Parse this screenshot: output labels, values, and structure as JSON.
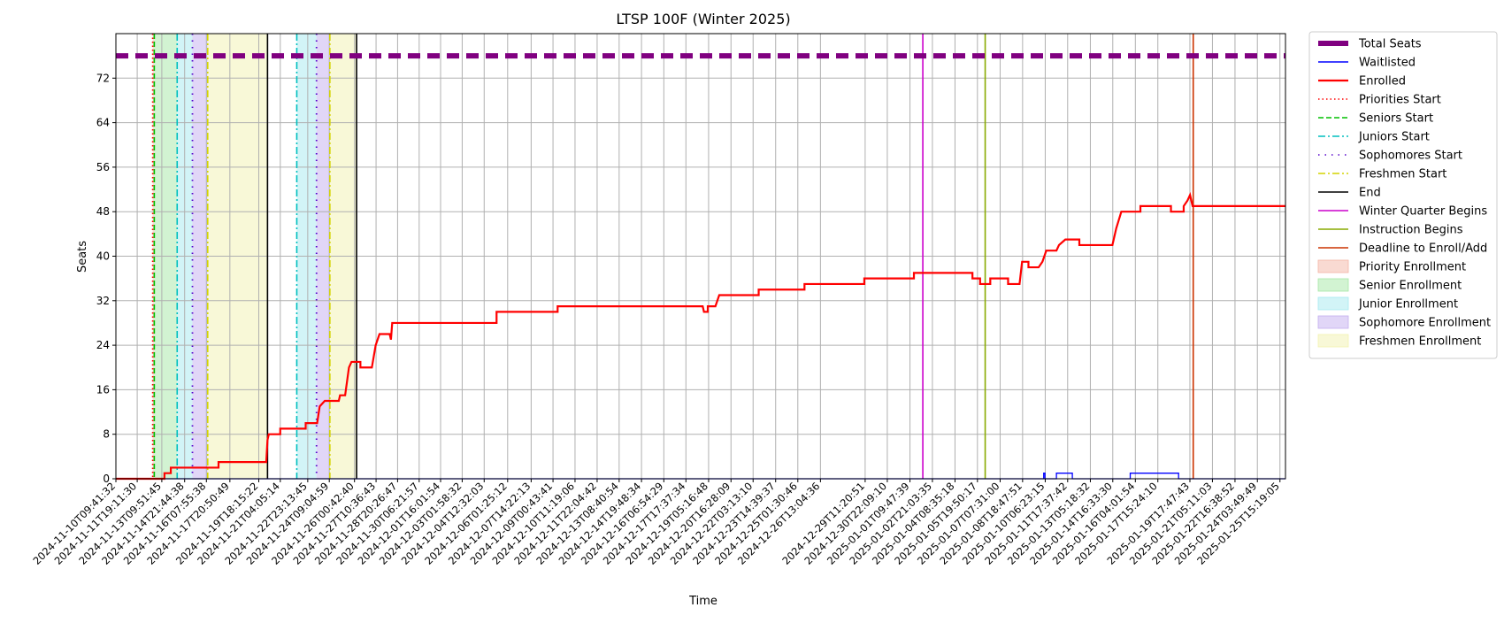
{
  "chart_data": {
    "type": "line",
    "title": "LTSP 100F (Winter 2025)",
    "xlabel": "Time",
    "ylabel": "Seats",
    "ylim": [
      0,
      80
    ],
    "xlim": [
      "2024-11-10T09:41:32",
      "2025-01-26T00:00:00"
    ],
    "yticks": [
      0,
      8,
      16,
      24,
      32,
      40,
      48,
      56,
      64,
      72
    ],
    "xtick_labels": [
      "2024-11-10T09:41:32",
      "2024-11-11T19:11:30",
      "2024-11-13T09:51:45",
      "2024-11-14T21:44:38",
      "2024-11-16T07:55:38",
      "2024-11-17T20:50:49",
      "2024-11-19T18:15:22",
      "2024-11-21T04:05:14",
      "2024-11-22T23:13:45",
      "2024-11-24T09:04:59",
      "2024-11-26T00:42:40",
      "2024-11-27T10:36:43",
      "2024-11-28T20:26:47",
      "2024-11-30T06:21:57",
      "2024-12-01T16:01:54",
      "2024-12-03T01:58:32",
      "2024-12-04T12:32:03",
      "2024-12-06T01:25:12",
      "2024-12-07T14:22:13",
      "2024-12-09T00:43:41",
      "2024-12-10T11:19:06",
      "2024-12-11T22:04:42",
      "2024-12-13T08:40:54",
      "2024-12-14T19:48:34",
      "2024-12-16T06:54:29",
      "2024-12-17T17:37:34",
      "2024-12-19T05:16:48",
      "2024-12-20T16:28:09",
      "2024-12-22T03:13:10",
      "2024-12-23T14:39:37",
      "2024-12-25T01:30:46",
      "2024-12-26T13:04:36",
      "2024-12-29T11:20:51",
      "2024-12-30T22:09:10",
      "2025-01-01T09:47:39",
      "2025-01-02T21:03:35",
      "2025-01-04T08:35:18",
      "2025-01-05T19:50:17",
      "2025-01-07T07:31:00",
      "2025-01-08T18:47:51",
      "2025-01-10T06:23:15",
      "2025-01-11T17:37:42",
      "2025-01-13T05:18:32",
      "2025-01-14T16:33:30",
      "2025-01-16T04:01:54",
      "2025-01-17T15:24:10",
      "2025-01-19T17:47:43",
      "2025-01-21T05:11:03",
      "2025-01-22T16:38:52",
      "2025-01-24T03:49:49",
      "2025-01-25T15:19:05"
    ],
    "grid": true,
    "legend_position": "outside-right",
    "series": [
      {
        "name": "Total Seats",
        "color": "#800080",
        "style": "dashed-thick",
        "points": [
          [
            "2024-11-10T09:41:32",
            76
          ],
          [
            "2025-01-26T00:00:00",
            76
          ]
        ]
      },
      {
        "name": "Waitlisted",
        "color": "#0000ff",
        "style": "solid-thin",
        "points": [
          [
            "2024-11-10T09:41:32",
            0
          ],
          [
            "2025-01-10T04:00:00",
            0
          ],
          [
            "2025-01-10T04:00:00",
            1
          ],
          [
            "2025-01-10T06:00:00",
            1
          ],
          [
            "2025-01-10T06:00:00",
            0
          ],
          [
            "2025-01-11T00:00:00",
            0
          ],
          [
            "2025-01-11T00:00:00",
            1
          ],
          [
            "2025-01-12T01:00:00",
            1
          ],
          [
            "2025-01-12T01:00:00",
            0
          ],
          [
            "2025-01-15T20:00:00",
            0
          ],
          [
            "2025-01-15T20:00:00",
            1
          ],
          [
            "2025-01-19T00:00:00",
            1
          ],
          [
            "2025-01-19T00:00:00",
            0
          ],
          [
            "2025-01-26T00:00:00",
            0
          ]
        ]
      },
      {
        "name": "Enrolled",
        "color": "#ff0000",
        "style": "solid",
        "points": [
          [
            "2024-11-10T09:41:32",
            0
          ],
          [
            "2024-11-13T14:00:00",
            0
          ],
          [
            "2024-11-13T14:00:00",
            1
          ],
          [
            "2024-11-14T00:00:00",
            1
          ],
          [
            "2024-11-14T00:00:00",
            2
          ],
          [
            "2024-11-17T03:00:00",
            2
          ],
          [
            "2024-11-17T03:00:00",
            3
          ],
          [
            "2024-11-20T06:00:00",
            3
          ],
          [
            "2024-11-20T08:00:00",
            7
          ],
          [
            "2024-11-20T10:00:00",
            8
          ],
          [
            "2024-11-21T04:00:00",
            8
          ],
          [
            "2024-11-21T04:00:00",
            9
          ],
          [
            "2024-11-22T20:00:00",
            9
          ],
          [
            "2024-11-22T20:00:00",
            10
          ],
          [
            "2024-11-23T14:00:00",
            10
          ],
          [
            "2024-11-23T18:00:00",
            13
          ],
          [
            "2024-11-24T02:00:00",
            14
          ],
          [
            "2024-11-25T00:00:00",
            14
          ],
          [
            "2024-11-25T02:00:00",
            15
          ],
          [
            "2024-11-25T10:00:00",
            15
          ],
          [
            "2024-11-25T16:00:00",
            20
          ],
          [
            "2024-11-25T20:00:00",
            21
          ],
          [
            "2024-11-26T10:00:00",
            21
          ],
          [
            "2024-11-26T10:00:00",
            20
          ],
          [
            "2024-11-27T04:00:00",
            20
          ],
          [
            "2024-11-27T10:00:00",
            24
          ],
          [
            "2024-11-27T16:00:00",
            26
          ],
          [
            "2024-11-28T08:00:00",
            26
          ],
          [
            "2024-11-28T10:00:00",
            25
          ],
          [
            "2024-11-28T12:00:00",
            28
          ],
          [
            "2024-12-05T08:00:00",
            28
          ],
          [
            "2024-12-05T08:00:00",
            30
          ],
          [
            "2024-12-09T08:00:00",
            30
          ],
          [
            "2024-12-09T08:00:00",
            31
          ],
          [
            "2024-12-18T20:00:00",
            31
          ],
          [
            "2024-12-18T22:00:00",
            30
          ],
          [
            "2024-12-19T04:00:00",
            30
          ],
          [
            "2024-12-19T04:00:00",
            31
          ],
          [
            "2024-12-19T16:00:00",
            31
          ],
          [
            "2024-12-19T22:00:00",
            33
          ],
          [
            "2024-12-22T12:00:00",
            33
          ],
          [
            "2024-12-22T12:00:00",
            34
          ],
          [
            "2024-12-25T12:00:00",
            34
          ],
          [
            "2024-12-25T12:00:00",
            35
          ],
          [
            "2024-12-29T10:00:00",
            35
          ],
          [
            "2024-12-29T10:00:00",
            36
          ],
          [
            "2025-01-01T16:00:00",
            36
          ],
          [
            "2025-01-01T16:00:00",
            37
          ],
          [
            "2025-01-05T12:00:00",
            37
          ],
          [
            "2025-01-05T12:00:00",
            36
          ],
          [
            "2025-01-06T00:00:00",
            36
          ],
          [
            "2025-01-06T00:00:00",
            35
          ],
          [
            "2025-01-06T16:00:00",
            35
          ],
          [
            "2025-01-06T16:00:00",
            36
          ],
          [
            "2025-01-07T20:00:00",
            36
          ],
          [
            "2025-01-07T20:00:00",
            35
          ],
          [
            "2025-01-08T14:00:00",
            35
          ],
          [
            "2025-01-08T18:00:00",
            39
          ],
          [
            "2025-01-09T04:00:00",
            39
          ],
          [
            "2025-01-09T04:00:00",
            38
          ],
          [
            "2025-01-09T20:00:00",
            38
          ],
          [
            "2025-01-10T02:00:00",
            39
          ],
          [
            "2025-01-10T08:00:00",
            41
          ],
          [
            "2025-01-11T00:00:00",
            41
          ],
          [
            "2025-01-11T04:00:00",
            42
          ],
          [
            "2025-01-11T14:00:00",
            43
          ],
          [
            "2025-01-12T12:00:00",
            43
          ],
          [
            "2025-01-12T12:00:00",
            42
          ],
          [
            "2025-01-14T16:00:00",
            42
          ],
          [
            "2025-01-14T22:00:00",
            45
          ],
          [
            "2025-01-15T06:00:00",
            48
          ],
          [
            "2025-01-16T12:00:00",
            48
          ],
          [
            "2025-01-16T12:00:00",
            49
          ],
          [
            "2025-01-18T12:00:00",
            49
          ],
          [
            "2025-01-18T12:00:00",
            48
          ],
          [
            "2025-01-19T08:00:00",
            48
          ],
          [
            "2025-01-19T08:00:00",
            49
          ],
          [
            "2025-01-19T14:00:00",
            50
          ],
          [
            "2025-01-19T18:00:00",
            51
          ],
          [
            "2025-01-19T22:00:00",
            49
          ],
          [
            "2025-01-26T00:00:00",
            49
          ]
        ]
      }
    ],
    "markers": [
      {
        "name": "Priorities Start",
        "color": "#ff0000",
        "style": "dotted",
        "times": [
          "2024-11-12T19:30:00"
        ]
      },
      {
        "name": "Seniors Start",
        "color": "#00c000",
        "style": "dashed",
        "times": [
          "2024-11-12T22:00:00"
        ]
      },
      {
        "name": "Juniors Start",
        "color": "#00bfbf",
        "style": "dashdot",
        "times": [
          "2024-11-14T10:00:00",
          "2024-11-22T06:00:00"
        ]
      },
      {
        "name": "Sophomores Start",
        "color": "#5500cc",
        "style": "loose-dot",
        "times": [
          "2024-11-15T10:00:00",
          "2024-11-23T13:00:00"
        ]
      },
      {
        "name": "Freshmen Start",
        "color": "#d4d400",
        "style": "dashdot",
        "times": [
          "2024-11-16T10:00:00",
          "2024-11-24T10:00:00"
        ]
      },
      {
        "name": "End",
        "color": "#000000",
        "style": "solid",
        "times": [
          "2024-11-20T08:00:00",
          "2024-11-26T04:00:00"
        ]
      },
      {
        "name": "Winter Quarter Begins",
        "color": "#cc00cc",
        "style": "solid",
        "times": [
          "2025-01-02T06:00:00"
        ]
      },
      {
        "name": "Instruction Begins",
        "color": "#88aa00",
        "style": "solid",
        "times": [
          "2025-01-06T08:00:00"
        ]
      },
      {
        "name": "Deadline to Enroll/Add",
        "color": "#cc3300",
        "style": "solid",
        "times": [
          "2025-01-19T23:00:00"
        ]
      }
    ],
    "spans": [
      {
        "name": "Priority Enrollment",
        "color": "#f4b5a5",
        "ranges": [
          [
            "2024-11-12T19:30:00",
            "2024-11-12T22:00:00"
          ]
        ]
      },
      {
        "name": "Senior Enrollment",
        "color": "#a6e8a6",
        "ranges": [
          [
            "2024-11-12T22:00:00",
            "2024-11-14T10:00:00"
          ]
        ]
      },
      {
        "name": "Junior Enrollment",
        "color": "#a6eaf0",
        "ranges": [
          [
            "2024-11-14T10:00:00",
            "2024-11-15T10:00:00"
          ],
          [
            "2024-11-22T06:00:00",
            "2024-11-23T13:00:00"
          ]
        ]
      },
      {
        "name": "Sophomore Enrollment",
        "color": "#c3aeef",
        "ranges": [
          [
            "2024-11-15T10:00:00",
            "2024-11-16T10:00:00"
          ],
          [
            "2024-11-23T13:00:00",
            "2024-11-24T10:00:00"
          ]
        ]
      },
      {
        "name": "Freshmen Enrollment",
        "color": "#f2f2b0",
        "ranges": [
          [
            "2024-11-16T10:00:00",
            "2024-11-20T08:00:00"
          ],
          [
            "2024-11-24T10:00:00",
            "2024-11-26T04:00:00"
          ]
        ]
      }
    ]
  }
}
